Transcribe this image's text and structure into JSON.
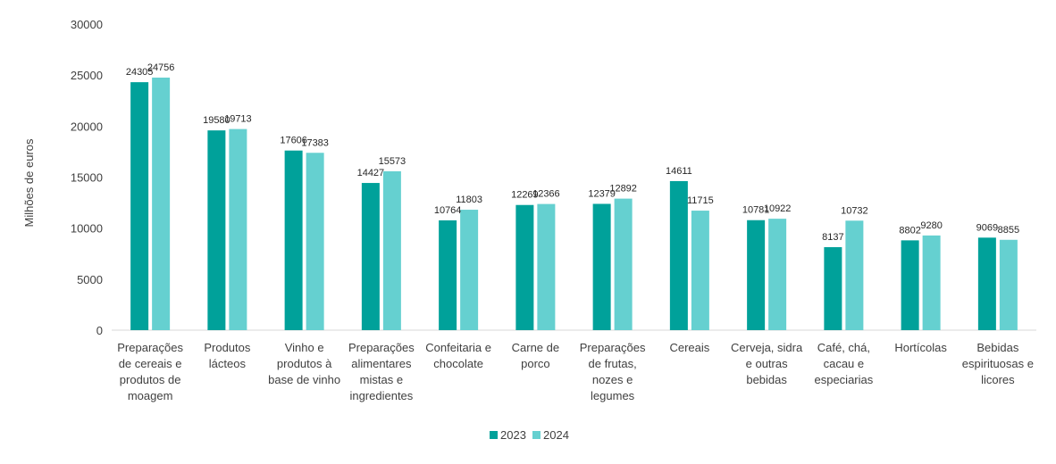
{
  "chart_data": {
    "type": "bar",
    "ylabel": "Milhões de euros",
    "ylim": [
      0,
      30000
    ],
    "yticks": [
      0,
      5000,
      10000,
      15000,
      20000,
      25000,
      30000
    ],
    "grid": false,
    "legend_position": "bottom",
    "categories": [
      [
        "Preparações",
        "de cereais e",
        "produtos de",
        "moagem"
      ],
      [
        "Produtos",
        "lácteos"
      ],
      [
        "Vinho e",
        "produtos à",
        "base de vinho"
      ],
      [
        "Preparações",
        "alimentares",
        "mistas e",
        "ingredientes"
      ],
      [
        "Confeitaria e",
        "chocolate"
      ],
      [
        "Carne de",
        "porco"
      ],
      [
        "Preparações",
        "de frutas,",
        "nozes e",
        "legumes"
      ],
      [
        "Cereais"
      ],
      [
        "Cerveja, sidra",
        "e outras",
        "bebidas"
      ],
      [
        "Café, chá,",
        "cacau e",
        "especiarias"
      ],
      [
        "Hortícolas"
      ],
      [
        "Bebidas",
        "espirituosas e",
        "licores"
      ]
    ],
    "series": [
      {
        "name": "2023",
        "color": "#00a19a",
        "values": [
          24305,
          19580,
          17606,
          14427,
          10764,
          12269,
          12379,
          14611,
          10781,
          8137,
          8802,
          9069
        ]
      },
      {
        "name": "2024",
        "color": "#65d0d0",
        "values": [
          24756,
          19713,
          17383,
          15573,
          11803,
          12366,
          12892,
          11715,
          10922,
          10732,
          9280,
          8855
        ]
      }
    ]
  }
}
